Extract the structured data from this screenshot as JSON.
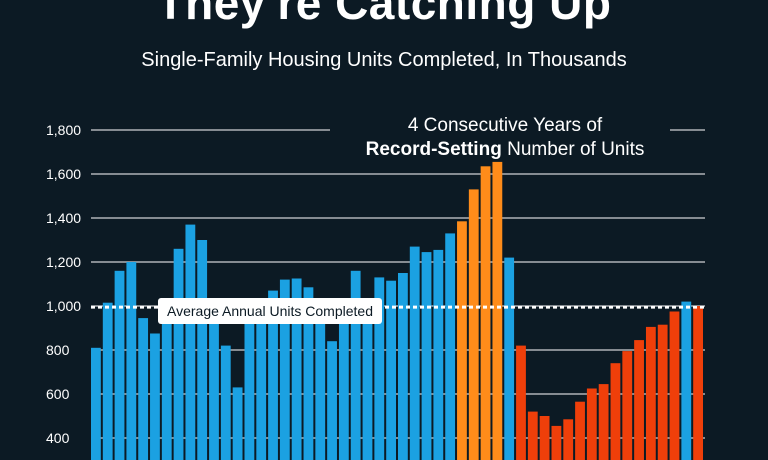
{
  "chart_data": {
    "type": "bar",
    "title": "They're Catching Up",
    "subtitle": "Single-Family Housing Units Completed, In Thousands",
    "y_ticks": [
      "400",
      "600",
      "800",
      "1,000",
      "1,200",
      "1,400",
      "1,600",
      "1,800"
    ],
    "y_tick_values": [
      400,
      600,
      800,
      1000,
      1200,
      1400,
      1600,
      1800
    ],
    "ylim": [
      260,
      1850
    ],
    "average_value": 995,
    "average_label": "Average Annual Units Completed",
    "annotation": {
      "line1": "4 Consecutive Years of",
      "bold": "Record-Setting",
      "rest": " Number of Units"
    },
    "colors": {
      "blue": "#1ba1e2",
      "orange": "#ff8c1a",
      "red": "#ef3f0a",
      "background": "#0c1a24",
      "line": "#ffffff"
    },
    "values": [
      810,
      1015,
      1160,
      1200,
      945,
      875,
      945,
      1260,
      1370,
      1300,
      1000,
      820,
      630,
      960,
      1010,
      1070,
      1120,
      1125,
      1085,
      1010,
      840,
      1000,
      1160,
      1000,
      1130,
      1115,
      1150,
      1270,
      1245,
      1255,
      1330,
      1385,
      1530,
      1635,
      1655,
      1220,
      820,
      520,
      500,
      455,
      485,
      565,
      625,
      645,
      740,
      795,
      845,
      905,
      915,
      975,
      1020,
      1000
    ],
    "series_color": [
      "blue",
      "blue",
      "blue",
      "blue",
      "blue",
      "blue",
      "blue",
      "blue",
      "blue",
      "blue",
      "blue",
      "blue",
      "blue",
      "blue",
      "blue",
      "blue",
      "blue",
      "blue",
      "blue",
      "blue",
      "blue",
      "blue",
      "blue",
      "blue",
      "blue",
      "blue",
      "blue",
      "blue",
      "blue",
      "blue",
      "blue",
      "orange",
      "orange",
      "orange",
      "orange",
      "blue",
      "red",
      "red",
      "red",
      "red",
      "red",
      "red",
      "red",
      "red",
      "red",
      "red",
      "red",
      "red",
      "red",
      "red",
      "blue",
      "red"
    ]
  }
}
